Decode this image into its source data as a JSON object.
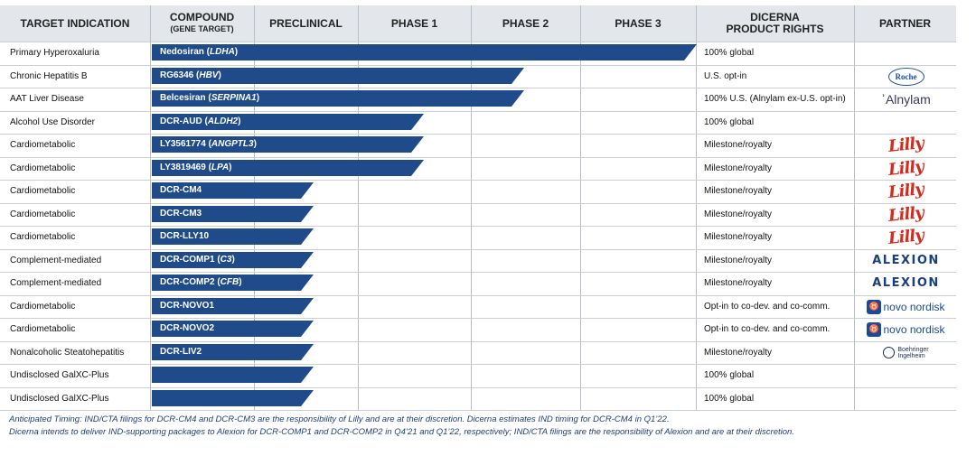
{
  "colors": {
    "bar": "#1f4b8a",
    "header_bg": "#e3e6ea"
  },
  "header": {
    "target_indication": "TARGET INDICATION",
    "compound": "COMPOUND",
    "compound_sub": "(GENE TARGET)",
    "preclinical": "PRECLINICAL",
    "phase1": "PHASE 1",
    "phase2": "PHASE 2",
    "phase3": "PHASE 3",
    "rights_line1": "DICERNA",
    "rights_line2": "PRODUCT RIGHTS",
    "partner": "PARTNER"
  },
  "rows": [
    {
      "indication": "Primary Hyperoxaluria",
      "compound": "Nedosiran",
      "target": "LDHA",
      "stage": "Phase 3",
      "progress": 1.0,
      "rights": "100% global",
      "partner": ""
    },
    {
      "indication": "Chronic Hepatitis B",
      "compound": "RG6346",
      "target": "HBV",
      "stage": "Phase 2",
      "progress": 0.683,
      "rights": "U.S. opt-in",
      "partner": "Roche"
    },
    {
      "indication": "AAT Liver Disease",
      "compound": "Belcesiran",
      "target": "SERPINA1",
      "stage": "Phase 2",
      "progress": 0.683,
      "rights": "100% U.S. (Alnylam ex-U.S. opt-in)",
      "partner": "Alnylam"
    },
    {
      "indication": "Alcohol Use Disorder",
      "compound": "DCR-AUD",
      "target": "ALDH2",
      "stage": "Phase 1",
      "progress": 0.499,
      "rights": "100% global",
      "partner": ""
    },
    {
      "indication": "Cardiometabolic",
      "compound": "LY3561774",
      "target": "ANGPTL3",
      "stage": "Phase 1",
      "progress": 0.499,
      "rights": "Milestone/royalty",
      "partner": "Lilly"
    },
    {
      "indication": "Cardiometabolic",
      "compound": "LY3819469",
      "target": "LPA",
      "stage": "Phase 1",
      "progress": 0.499,
      "rights": "Milestone/royalty",
      "partner": "Lilly"
    },
    {
      "indication": "Cardiometabolic",
      "compound": "DCR-CM4",
      "target": "",
      "stage": "Preclinical",
      "progress": 0.297,
      "rights": "Milestone/royalty",
      "partner": "Lilly"
    },
    {
      "indication": "Cardiometabolic",
      "compound": "DCR-CM3",
      "target": "",
      "stage": "Preclinical",
      "progress": 0.297,
      "rights": "Milestone/royalty",
      "partner": "Lilly"
    },
    {
      "indication": "Cardiometabolic",
      "compound": "DCR-LLY10",
      "target": "",
      "stage": "Preclinical",
      "progress": 0.297,
      "rights": "Milestone/royalty",
      "partner": "Lilly"
    },
    {
      "indication": "Complement-mediated",
      "compound": "DCR-COMP1",
      "target": "C3",
      "stage": "Preclinical",
      "progress": 0.297,
      "rights": "Milestone/royalty",
      "partner": "Alexion"
    },
    {
      "indication": "Complement-mediated",
      "compound": "DCR-COMP2",
      "target": "CFB",
      "stage": "Preclinical",
      "progress": 0.297,
      "rights": "Milestone/royalty",
      "partner": "Alexion"
    },
    {
      "indication": "Cardiometabolic",
      "compound": "DCR-NOVO1",
      "target": "",
      "stage": "Preclinical",
      "progress": 0.297,
      "rights": "Opt-in to co-dev. and co-comm.",
      "partner": "Novo Nordisk"
    },
    {
      "indication": "Cardiometabolic",
      "compound": "DCR-NOVO2",
      "target": "",
      "stage": "Preclinical",
      "progress": 0.297,
      "rights": "Opt-in to co-dev. and co-comm.",
      "partner": "Novo Nordisk"
    },
    {
      "indication": "Nonalcoholic Steatohepatitis",
      "compound": "DCR-LIV2",
      "target": "",
      "stage": "Preclinical",
      "progress": 0.297,
      "rights": "Milestone/royalty",
      "partner": "Boehringer Ingelheim"
    },
    {
      "indication": "Undisclosed GalXC-Plus",
      "compound": "",
      "target": "",
      "stage": "Preclinical",
      "progress": 0.297,
      "rights": "100% global",
      "partner": ""
    },
    {
      "indication": "Undisclosed GalXC-Plus",
      "compound": "",
      "target": "",
      "stage": "Preclinical",
      "progress": 0.297,
      "rights": "100% global",
      "partner": ""
    }
  ],
  "logos": {
    "roche": "Roche",
    "alnylam": "Alnylam",
    "lilly": "Lilly",
    "alexion": "ALEXION",
    "novo": "novo nordisk",
    "boehringer_line1": "Boehringer",
    "boehringer_line2": "Ingelheim"
  },
  "footer": {
    "line1": "Anticipated Timing: IND/CTA filings for DCR-CM4 and DCR-CM3 are the responsibility of Lilly and are at their discretion. Dicerna estimates IND timing for DCR-CM4 in Q1’22.",
    "line2": "Dicerna intends to deliver IND-supporting packages to Alexion for DCR-COMP1 and DCR-COMP2 in Q4’21 and Q1’22, respectively; IND/CTA filings are the responsibility of Alexion and are at their discretion."
  }
}
